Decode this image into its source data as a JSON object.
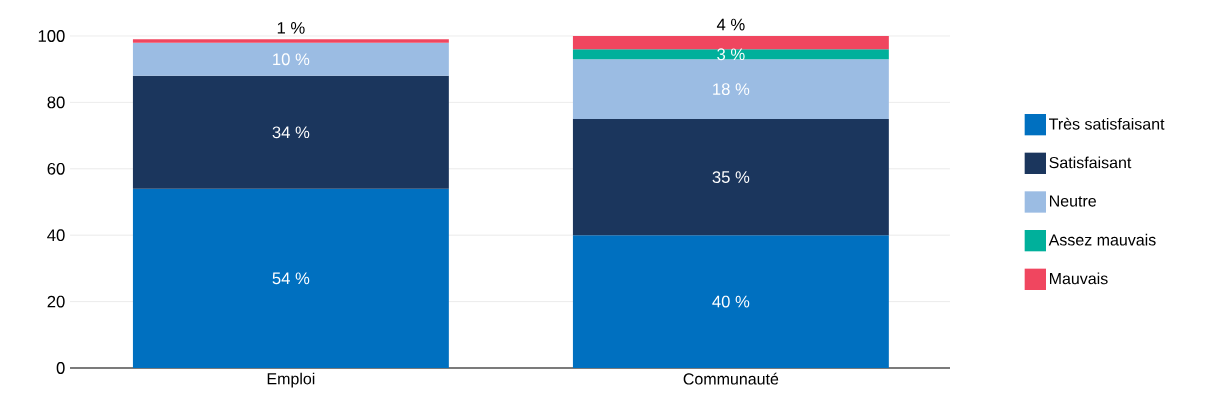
{
  "chart_data": {
    "type": "bar",
    "stacked": true,
    "categories": [
      "Emploi",
      "Communauté"
    ],
    "series": [
      {
        "name": "Très satisfaisant",
        "color": "#0070c0",
        "values": [
          54,
          40
        ],
        "value_labels": [
          "54 %",
          "40 %"
        ]
      },
      {
        "name": "Satisfaisant",
        "color": "#1b365d",
        "values": [
          34,
          35
        ],
        "value_labels": [
          "34 %",
          "35 %"
        ]
      },
      {
        "name": "Neutre",
        "color": "#9bbce3",
        "values": [
          10,
          18
        ],
        "value_labels": [
          "10 %",
          "18 %"
        ]
      },
      {
        "name": "Assez mauvais",
        "color": "#00b09b",
        "values": [
          null,
          3
        ],
        "value_labels": [
          null,
          "3 %"
        ]
      },
      {
        "name": "Mauvais",
        "color": "#f0465f",
        "values": [
          1,
          4
        ],
        "value_labels": [
          "1 %",
          "4 %"
        ]
      }
    ],
    "ylim": [
      0,
      100
    ],
    "yticks": [
      0,
      20,
      40,
      60,
      80,
      100
    ],
    "grid": "y",
    "legend": "right"
  }
}
